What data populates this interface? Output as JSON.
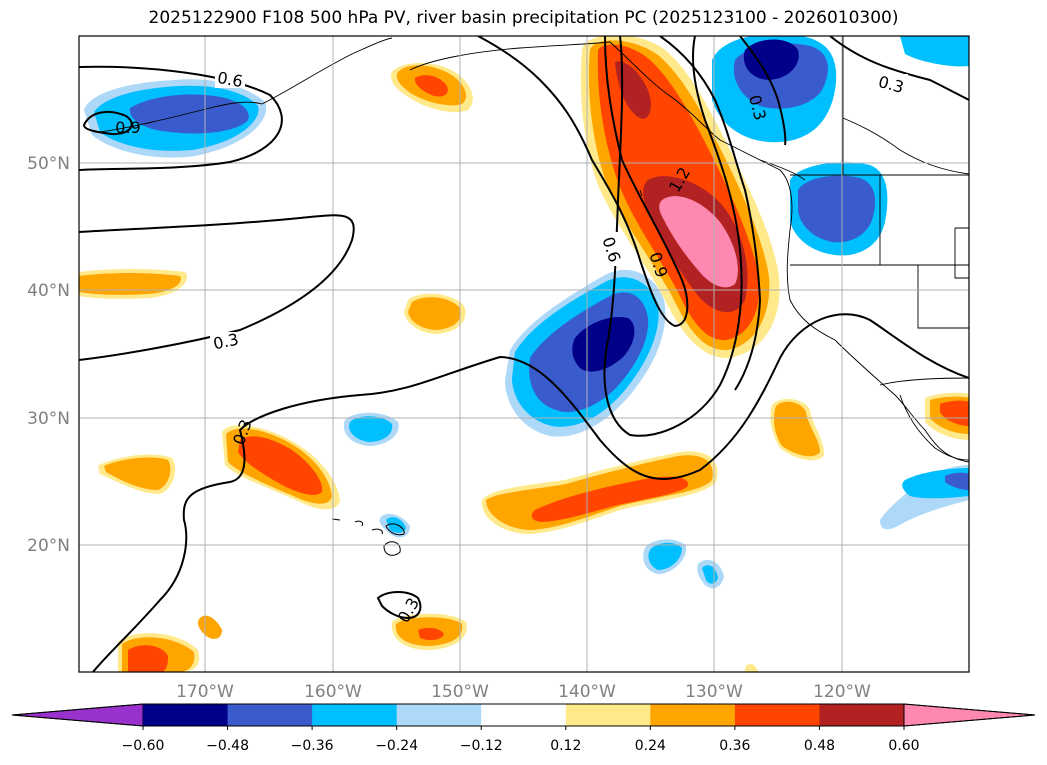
{
  "title": "2025122900 F108 500 hPa PV, river basin precipitation PC (2025123100 - 2026010300)",
  "map": {
    "lat_labels": [
      "50°N",
      "40°N",
      "30°N",
      "20°N"
    ],
    "lon_labels": [
      "170°W",
      "160°W",
      "150°W",
      "140°W",
      "130°W",
      "120°W"
    ],
    "grid": true,
    "contour_labels": [
      "0.6",
      "0.9",
      "0.3",
      "0.3",
      "0.3",
      "0.6",
      "0.9",
      "1.2",
      "0.3",
      "0.3"
    ],
    "colors": {
      "pos_012": "#ffe98a",
      "pos_024": "#ffa500",
      "pos_036": "#ff4500",
      "pos_048": "#b22222",
      "pos_060": "#ff88b0",
      "neg_012": "#add8f8",
      "neg_024": "#00bfff",
      "neg_036": "#3a5bcc",
      "neg_048": "#00008b",
      "neg_060": "#9932cc",
      "label_gray": "#808080"
    }
  },
  "colorbar": {
    "ticks": [
      "−0.60",
      "−0.48",
      "−0.36",
      "−0.24",
      "−0.12",
      "0.12",
      "0.24",
      "0.36",
      "0.48",
      "0.60"
    ],
    "colors": [
      "#9932cc",
      "#00008b",
      "#3a5bcc",
      "#00bfff",
      "#add8f8",
      "#ffffff",
      "#ffe98a",
      "#ffa500",
      "#ff4500",
      "#b22222",
      "#ff88b0"
    ]
  }
}
